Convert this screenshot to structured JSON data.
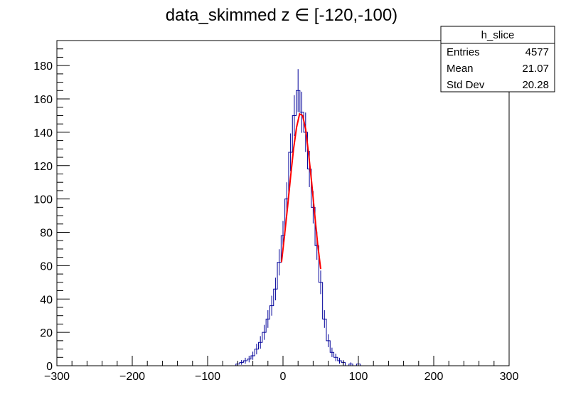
{
  "chart_data": {
    "type": "histogram",
    "title": "data_skimmed z  ∈ [-120,-100)",
    "xlabel": "",
    "ylabel": "",
    "xlim": [
      -300,
      300
    ],
    "ylim": [
      0,
      195
    ],
    "x_ticks": [
      -300,
      -200,
      -100,
      0,
      100,
      200,
      300
    ],
    "x_tick_labels": [
      "−300",
      "−200",
      "−100",
      "0",
      "100",
      "200",
      "300"
    ],
    "y_ticks": [
      0,
      20,
      40,
      60,
      80,
      100,
      120,
      140,
      160,
      180
    ],
    "y_tick_labels": [
      "0",
      "20",
      "40",
      "60",
      "80",
      "100",
      "120",
      "140",
      "160",
      "180"
    ],
    "grid": false,
    "histogram_color": "#000099",
    "fit_color": "#ff0000",
    "series": [
      {
        "name": "h_slice",
        "style": "histogram-with-error-bars",
        "x": [
          -60,
          -55,
          -50,
          -45,
          -40,
          -35,
          -30,
          -25,
          -20,
          -15,
          -10,
          -5,
          0,
          5,
          10,
          15,
          20,
          25,
          30,
          35,
          40,
          45,
          50,
          55,
          60,
          65,
          70,
          75,
          80,
          90,
          100
        ],
        "y": [
          1,
          2,
          3,
          4,
          6,
          10,
          14,
          20,
          28,
          36,
          46,
          62,
          78,
          100,
          128,
          150,
          165,
          152,
          140,
          118,
          95,
          72,
          50,
          28,
          15,
          8,
          5,
          3,
          2,
          1,
          1
        ]
      },
      {
        "name": "gaussian-fit",
        "style": "line",
        "x": [
          -2,
          2,
          6,
          10,
          14,
          18,
          22,
          26,
          30,
          34,
          38,
          42,
          46,
          50
        ],
        "y": [
          62,
          78,
          95,
          113,
          130,
          143,
          151,
          150,
          142,
          127,
          110,
          91,
          73,
          58
        ]
      }
    ],
    "stats_box": {
      "title": "h_slice",
      "rows": [
        {
          "label": "Entries",
          "value": "4577"
        },
        {
          "label": "Mean",
          "value": "21.07"
        },
        {
          "label": "Std Dev",
          "value": "20.28"
        }
      ],
      "position": "top-right"
    }
  }
}
